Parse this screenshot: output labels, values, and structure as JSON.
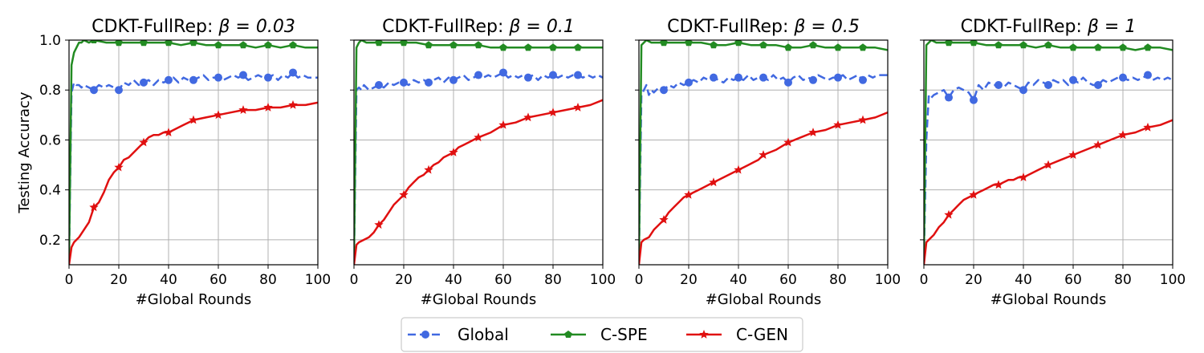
{
  "chart_data": [
    {
      "type": "line",
      "title_prefix": "CDKT-FullRep: ",
      "beta_label": "β = 0.03",
      "xlabel": "#Global Rounds",
      "ylabel": "Testing Accuracy",
      "xlim": [
        0,
        100
      ],
      "ylim": [
        0.1,
        1.0
      ],
      "grid": true,
      "series": [
        {
          "name": "Global",
          "x": [
            0,
            1,
            2,
            3,
            4,
            5,
            6,
            8,
            10,
            12,
            14,
            16,
            18,
            20,
            22,
            24,
            26,
            28,
            30,
            32,
            34,
            36,
            38,
            40,
            42,
            44,
            46,
            48,
            50,
            52,
            54,
            56,
            58,
            60,
            62,
            64,
            66,
            68,
            70,
            72,
            74,
            76,
            78,
            80,
            82,
            84,
            86,
            88,
            90,
            92,
            94,
            96,
            98,
            100
          ],
          "values": [
            0.12,
            0.79,
            0.83,
            0.82,
            0.82,
            0.81,
            0.82,
            0.81,
            0.8,
            0.82,
            0.81,
            0.82,
            0.81,
            0.8,
            0.83,
            0.82,
            0.84,
            0.82,
            0.83,
            0.84,
            0.82,
            0.84,
            0.83,
            0.84,
            0.85,
            0.83,
            0.85,
            0.84,
            0.84,
            0.85,
            0.86,
            0.84,
            0.85,
            0.85,
            0.84,
            0.85,
            0.86,
            0.85,
            0.86,
            0.84,
            0.85,
            0.86,
            0.85,
            0.85,
            0.86,
            0.84,
            0.86,
            0.85,
            0.87,
            0.85,
            0.86,
            0.85,
            0.85,
            0.85
          ]
        },
        {
          "name": "C-SPE",
          "x": [
            0,
            1,
            2,
            3,
            4,
            5,
            6,
            8,
            10,
            15,
            20,
            25,
            30,
            35,
            40,
            45,
            50,
            55,
            60,
            65,
            70,
            75,
            80,
            85,
            90,
            95,
            100
          ],
          "values": [
            0.12,
            0.9,
            0.95,
            0.97,
            0.99,
            0.99,
            1.0,
            0.99,
            1.0,
            0.99,
            0.99,
            0.99,
            0.99,
            0.99,
            0.99,
            0.98,
            0.99,
            0.98,
            0.98,
            0.98,
            0.98,
            0.97,
            0.98,
            0.97,
            0.98,
            0.97,
            0.97
          ]
        },
        {
          "name": "C-GEN",
          "x": [
            0,
            1,
            2,
            4,
            6,
            8,
            10,
            12,
            14,
            16,
            18,
            20,
            22,
            24,
            26,
            28,
            30,
            32,
            34,
            36,
            38,
            40,
            42,
            44,
            46,
            48,
            50,
            55,
            60,
            65,
            70,
            75,
            80,
            85,
            90,
            95,
            100
          ],
          "values": [
            0.1,
            0.17,
            0.19,
            0.21,
            0.24,
            0.27,
            0.33,
            0.35,
            0.39,
            0.44,
            0.47,
            0.49,
            0.52,
            0.53,
            0.55,
            0.57,
            0.59,
            0.61,
            0.62,
            0.62,
            0.63,
            0.63,
            0.64,
            0.65,
            0.66,
            0.67,
            0.68,
            0.69,
            0.7,
            0.71,
            0.72,
            0.72,
            0.73,
            0.73,
            0.74,
            0.74,
            0.75
          ]
        }
      ]
    },
    {
      "type": "line",
      "title_prefix": "CDKT-FullRep: ",
      "beta_label": "β = 0.1",
      "xlabel": "#Global Rounds",
      "ylabel": "",
      "xlim": [
        0,
        100
      ],
      "ylim": [
        0.1,
        1.0
      ],
      "grid": true,
      "series": [
        {
          "name": "Global",
          "x": [
            0,
            1,
            2,
            3,
            4,
            6,
            8,
            10,
            12,
            14,
            16,
            18,
            20,
            22,
            24,
            26,
            28,
            30,
            32,
            34,
            36,
            38,
            40,
            42,
            44,
            46,
            48,
            50,
            52,
            54,
            56,
            58,
            60,
            62,
            64,
            66,
            68,
            70,
            72,
            74,
            76,
            78,
            80,
            82,
            84,
            86,
            88,
            90,
            92,
            94,
            96,
            98,
            100
          ],
          "values": [
            0.12,
            0.8,
            0.81,
            0.8,
            0.82,
            0.8,
            0.81,
            0.82,
            0.81,
            0.83,
            0.82,
            0.83,
            0.83,
            0.82,
            0.84,
            0.83,
            0.84,
            0.83,
            0.84,
            0.85,
            0.83,
            0.85,
            0.84,
            0.85,
            0.86,
            0.84,
            0.85,
            0.86,
            0.85,
            0.86,
            0.85,
            0.86,
            0.87,
            0.85,
            0.86,
            0.85,
            0.86,
            0.85,
            0.86,
            0.84,
            0.86,
            0.85,
            0.86,
            0.85,
            0.86,
            0.85,
            0.86,
            0.86,
            0.85,
            0.86,
            0.85,
            0.86,
            0.85
          ]
        },
        {
          "name": "C-SPE",
          "x": [
            0,
            1,
            2,
            3,
            5,
            10,
            15,
            20,
            25,
            30,
            35,
            40,
            45,
            50,
            55,
            60,
            65,
            70,
            75,
            80,
            85,
            90,
            95,
            100
          ],
          "values": [
            0.12,
            0.97,
            0.99,
            1.0,
            0.99,
            0.99,
            0.99,
            0.99,
            0.99,
            0.98,
            0.98,
            0.98,
            0.98,
            0.98,
            0.97,
            0.97,
            0.97,
            0.97,
            0.97,
            0.97,
            0.97,
            0.97,
            0.97,
            0.97
          ]
        },
        {
          "name": "C-GEN",
          "x": [
            0,
            1,
            2,
            4,
            6,
            8,
            10,
            12,
            14,
            16,
            18,
            20,
            22,
            24,
            26,
            28,
            30,
            32,
            34,
            36,
            38,
            40,
            42,
            44,
            46,
            48,
            50,
            55,
            60,
            65,
            70,
            75,
            80,
            85,
            90,
            95,
            100
          ],
          "values": [
            0.1,
            0.18,
            0.19,
            0.2,
            0.21,
            0.23,
            0.26,
            0.28,
            0.31,
            0.34,
            0.36,
            0.38,
            0.41,
            0.43,
            0.45,
            0.46,
            0.48,
            0.5,
            0.51,
            0.53,
            0.54,
            0.55,
            0.57,
            0.58,
            0.59,
            0.6,
            0.61,
            0.63,
            0.66,
            0.67,
            0.69,
            0.7,
            0.71,
            0.72,
            0.73,
            0.74,
            0.76
          ]
        }
      ]
    },
    {
      "type": "line",
      "title_prefix": "CDKT-FullRep: ",
      "beta_label": "β = 0.5",
      "xlabel": "#Global Rounds",
      "ylabel": "",
      "xlim": [
        0,
        100
      ],
      "ylim": [
        0.1,
        1.0
      ],
      "grid": true,
      "series": [
        {
          "name": "Global",
          "x": [
            0,
            1,
            2,
            3,
            4,
            5,
            6,
            8,
            10,
            12,
            14,
            16,
            18,
            20,
            22,
            24,
            26,
            28,
            30,
            32,
            34,
            36,
            38,
            40,
            42,
            44,
            46,
            48,
            50,
            52,
            54,
            56,
            58,
            60,
            62,
            64,
            66,
            68,
            70,
            72,
            74,
            76,
            78,
            80,
            82,
            84,
            86,
            88,
            90,
            92,
            94,
            96,
            98,
            100
          ],
          "values": [
            0.12,
            0.78,
            0.8,
            0.82,
            0.78,
            0.8,
            0.79,
            0.81,
            0.8,
            0.82,
            0.81,
            0.83,
            0.82,
            0.83,
            0.84,
            0.83,
            0.85,
            0.84,
            0.85,
            0.84,
            0.83,
            0.85,
            0.84,
            0.85,
            0.84,
            0.86,
            0.84,
            0.85,
            0.85,
            0.84,
            0.86,
            0.84,
            0.85,
            0.83,
            0.85,
            0.86,
            0.84,
            0.85,
            0.84,
            0.86,
            0.85,
            0.84,
            0.85,
            0.85,
            0.86,
            0.84,
            0.85,
            0.86,
            0.84,
            0.86,
            0.85,
            0.86,
            0.86,
            0.86
          ]
        },
        {
          "name": "C-SPE",
          "x": [
            0,
            1,
            2,
            3,
            5,
            10,
            15,
            20,
            25,
            30,
            35,
            40,
            45,
            50,
            55,
            60,
            65,
            70,
            75,
            80,
            85,
            90,
            95,
            100
          ],
          "values": [
            0.12,
            0.98,
            0.99,
            1.0,
            0.99,
            0.99,
            0.99,
            0.99,
            0.99,
            0.98,
            0.98,
            0.99,
            0.98,
            0.98,
            0.98,
            0.97,
            0.97,
            0.98,
            0.97,
            0.97,
            0.97,
            0.97,
            0.97,
            0.96
          ]
        },
        {
          "name": "C-GEN",
          "x": [
            0,
            1,
            2,
            4,
            6,
            8,
            10,
            12,
            14,
            16,
            18,
            20,
            22,
            24,
            26,
            28,
            30,
            32,
            34,
            36,
            38,
            40,
            42,
            44,
            46,
            48,
            50,
            55,
            60,
            65,
            70,
            75,
            80,
            85,
            90,
            95,
            100
          ],
          "values": [
            0.1,
            0.19,
            0.2,
            0.21,
            0.24,
            0.26,
            0.28,
            0.31,
            0.33,
            0.35,
            0.37,
            0.38,
            0.39,
            0.4,
            0.41,
            0.42,
            0.43,
            0.44,
            0.45,
            0.46,
            0.47,
            0.48,
            0.49,
            0.5,
            0.51,
            0.52,
            0.54,
            0.56,
            0.59,
            0.61,
            0.63,
            0.64,
            0.66,
            0.67,
            0.68,
            0.69,
            0.71
          ]
        }
      ]
    },
    {
      "type": "line",
      "title_prefix": "CDKT-FullRep: ",
      "beta_label": "β = 1",
      "xlabel": "#Global Rounds",
      "ylabel": "",
      "xlim": [
        0,
        100
      ],
      "ylim": [
        0.1,
        1.0
      ],
      "grid": true,
      "series": [
        {
          "name": "Global",
          "x": [
            0,
            1,
            2,
            3,
            4,
            6,
            8,
            10,
            12,
            14,
            16,
            18,
            20,
            22,
            24,
            26,
            28,
            30,
            32,
            34,
            36,
            38,
            40,
            42,
            44,
            46,
            48,
            50,
            52,
            54,
            56,
            58,
            60,
            62,
            64,
            66,
            68,
            70,
            72,
            74,
            76,
            78,
            80,
            82,
            84,
            86,
            88,
            90,
            92,
            94,
            96,
            98,
            100
          ],
          "values": [
            0.12,
            0.6,
            0.78,
            0.77,
            0.78,
            0.79,
            0.8,
            0.77,
            0.8,
            0.81,
            0.8,
            0.79,
            0.76,
            0.82,
            0.8,
            0.83,
            0.82,
            0.82,
            0.81,
            0.83,
            0.82,
            0.81,
            0.8,
            0.83,
            0.82,
            0.84,
            0.83,
            0.82,
            0.84,
            0.83,
            0.84,
            0.82,
            0.84,
            0.83,
            0.85,
            0.83,
            0.82,
            0.82,
            0.84,
            0.83,
            0.84,
            0.85,
            0.85,
            0.84,
            0.85,
            0.84,
            0.85,
            0.86,
            0.84,
            0.85,
            0.84,
            0.85,
            0.84
          ]
        },
        {
          "name": "C-SPE",
          "x": [
            0,
            1,
            2,
            3,
            5,
            10,
            15,
            20,
            25,
            30,
            35,
            40,
            45,
            50,
            55,
            60,
            65,
            70,
            75,
            80,
            85,
            90,
            95,
            100
          ],
          "values": [
            0.12,
            0.98,
            0.99,
            1.0,
            0.99,
            0.99,
            0.99,
            0.99,
            0.98,
            0.98,
            0.98,
            0.98,
            0.97,
            0.98,
            0.97,
            0.97,
            0.97,
            0.97,
            0.97,
            0.97,
            0.96,
            0.97,
            0.97,
            0.96
          ]
        },
        {
          "name": "C-GEN",
          "x": [
            0,
            1,
            2,
            4,
            6,
            8,
            10,
            12,
            14,
            16,
            18,
            20,
            22,
            24,
            26,
            28,
            30,
            32,
            34,
            36,
            38,
            40,
            42,
            44,
            46,
            48,
            50,
            55,
            60,
            65,
            70,
            75,
            80,
            85,
            90,
            95,
            100
          ],
          "values": [
            0.1,
            0.19,
            0.2,
            0.22,
            0.25,
            0.27,
            0.3,
            0.32,
            0.34,
            0.36,
            0.37,
            0.38,
            0.39,
            0.4,
            0.41,
            0.42,
            0.42,
            0.43,
            0.44,
            0.44,
            0.45,
            0.45,
            0.46,
            0.47,
            0.48,
            0.49,
            0.5,
            0.52,
            0.54,
            0.56,
            0.58,
            0.6,
            0.62,
            0.63,
            0.65,
            0.66,
            0.68
          ]
        }
      ]
    }
  ],
  "legend": {
    "placement": "bottom-center",
    "entries": [
      {
        "name": "Global",
        "color": "#4169e1",
        "style": "dashed",
        "marker": "circle"
      },
      {
        "name": "C-SPE",
        "color": "#228b22",
        "style": "solid",
        "marker": "pentagon"
      },
      {
        "name": "C-GEN",
        "color": "#e01010",
        "style": "solid",
        "marker": "star"
      }
    ]
  },
  "colors": {
    "Global": "#4169e1",
    "C-SPE": "#228b22",
    "C-GEN": "#e01010",
    "grid": "#b0b0b0"
  }
}
